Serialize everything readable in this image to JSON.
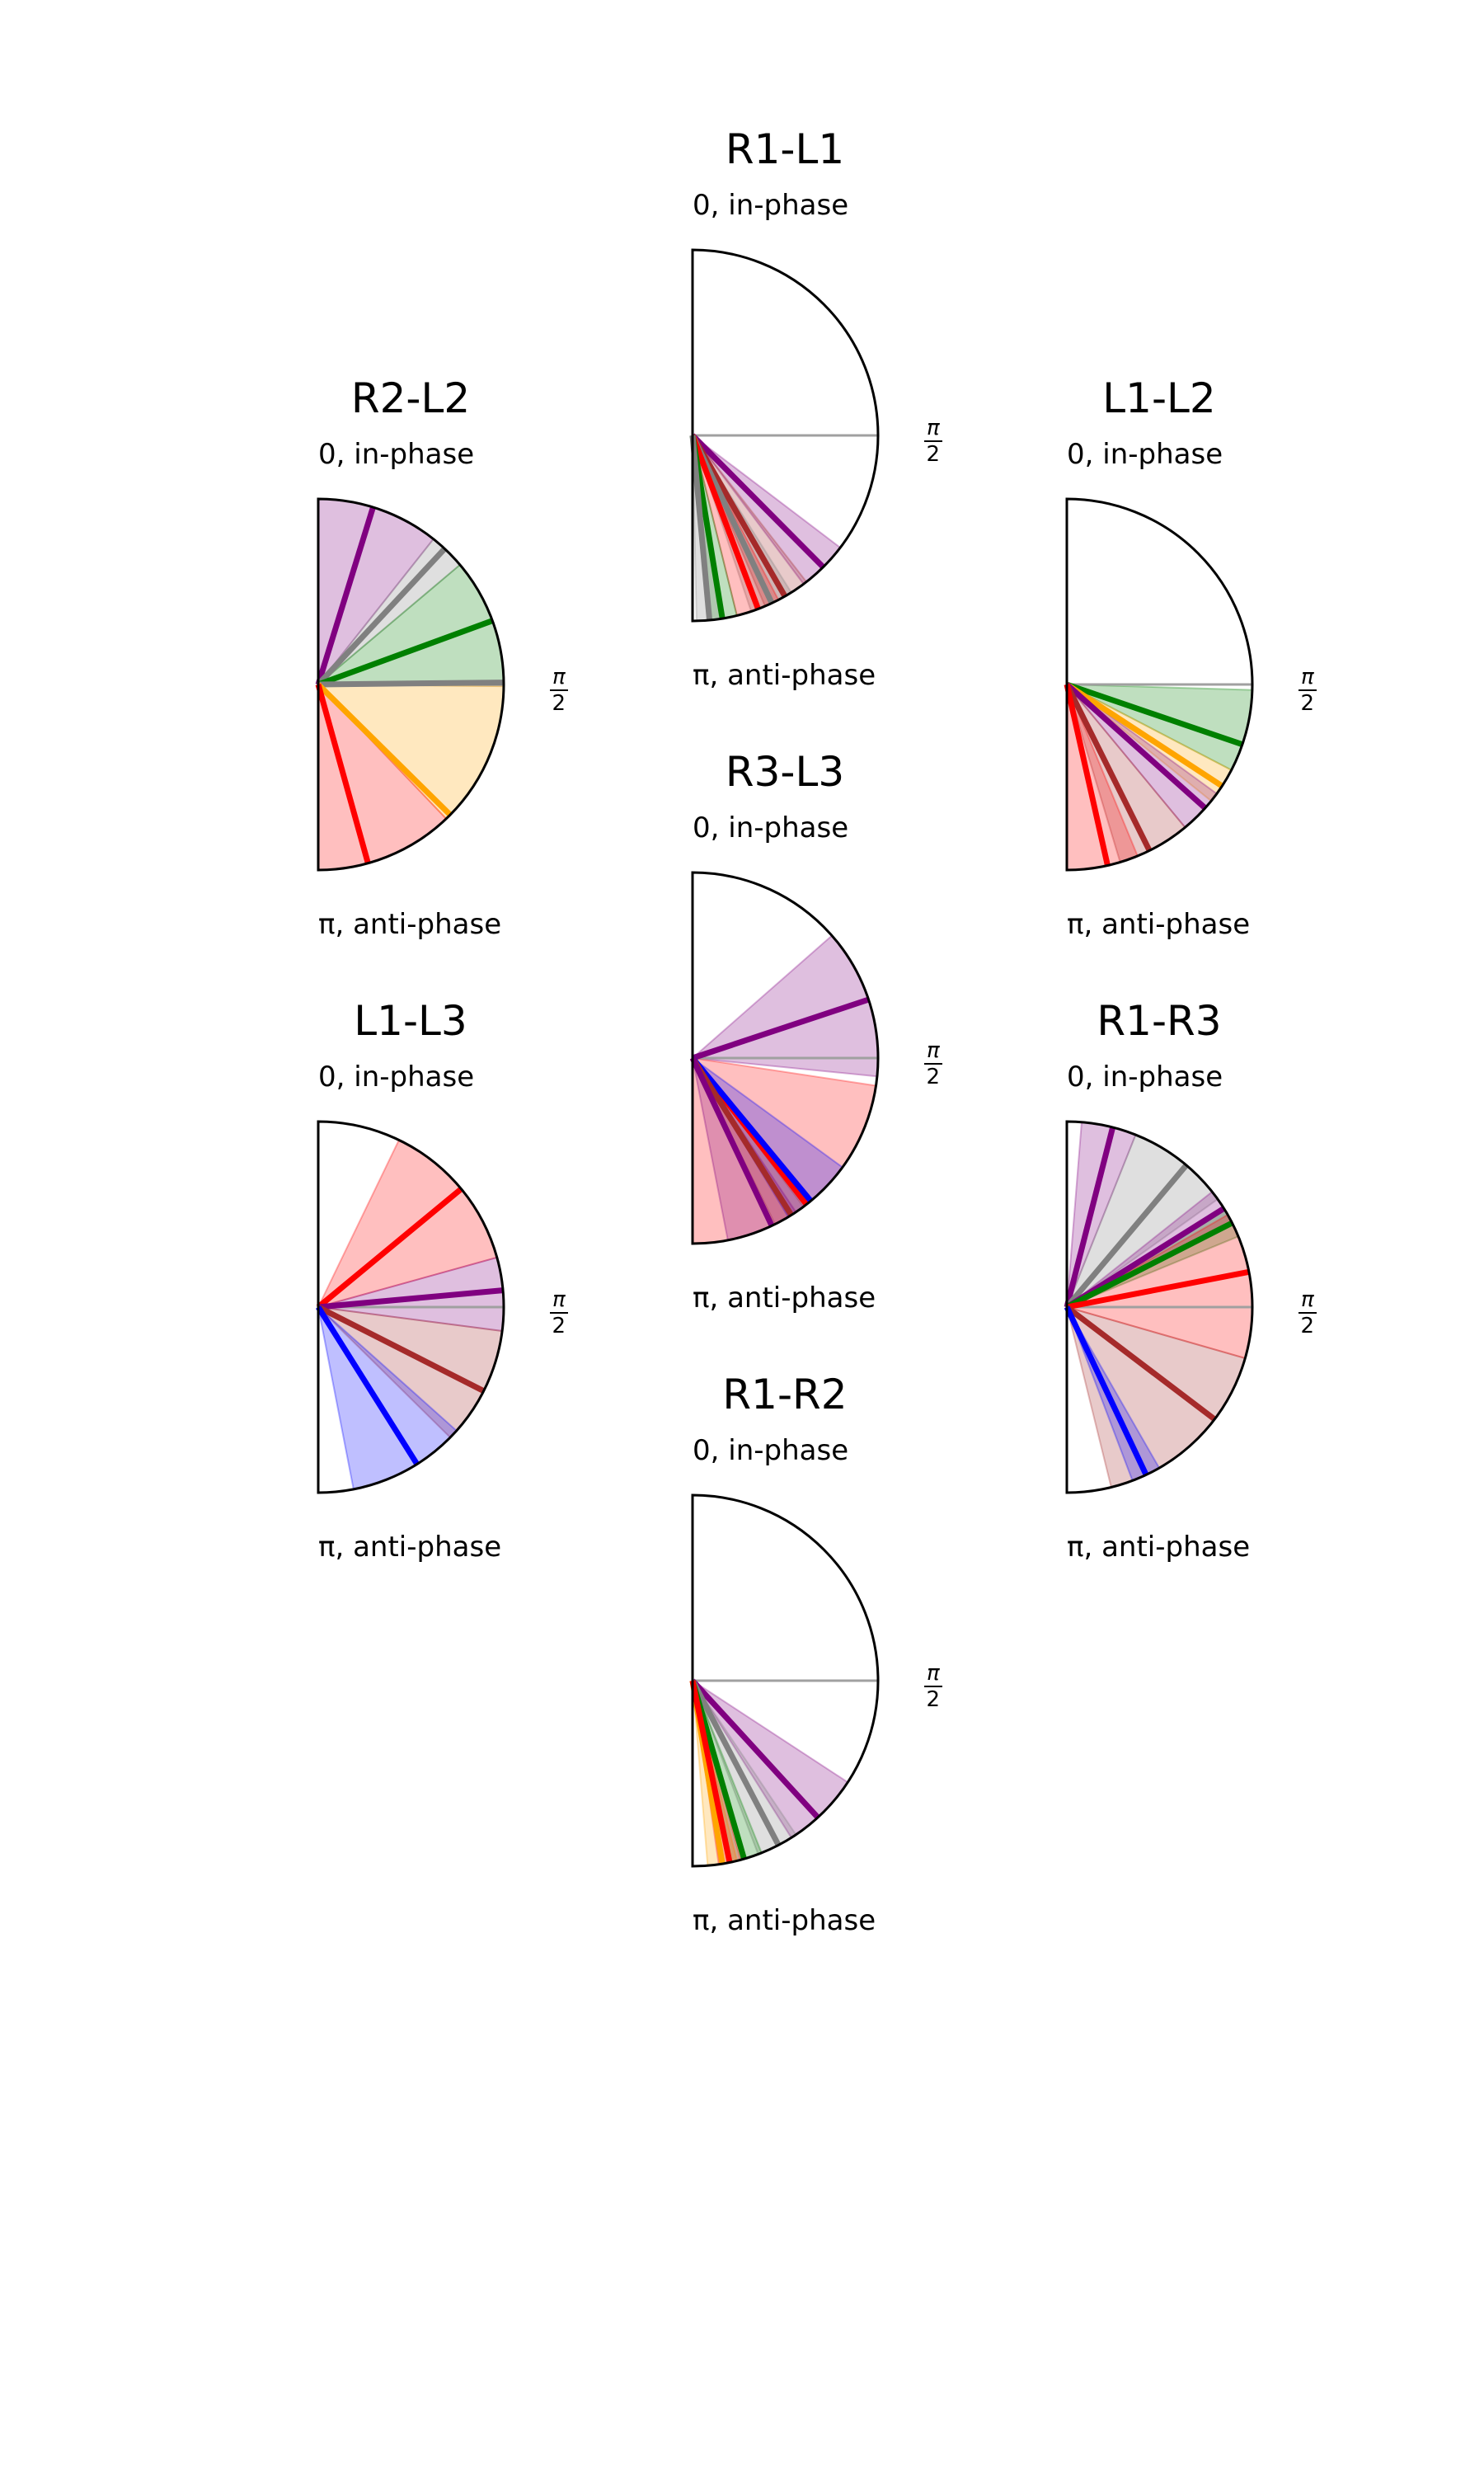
{
  "chart_data": [
    {
      "type": "polar",
      "title": "R1-L1",
      "top_label": "0, in-phase",
      "bottom_label": "π, anti-phase",
      "side_label": "π/2",
      "theta_range": [
        0,
        3.14159
      ],
      "reference_angle": 1.5708,
      "series": [
        {
          "color": "#800080",
          "mean": 2.36,
          "lo": 2.22,
          "hi": 2.5
        },
        {
          "color": "#A52A2A",
          "mean": 2.62,
          "lo": 2.48,
          "hi": 2.74
        },
        {
          "color": "#808080",
          "mean": 2.7,
          "lo": 2.58,
          "hi": 2.82
        },
        {
          "color": "#FF0000",
          "mean": 2.78,
          "lo": 2.66,
          "hi": 2.9
        },
        {
          "color": "#008000",
          "mean": 2.98,
          "lo": 2.9,
          "hi": 3.06
        },
        {
          "color": "#808080",
          "mean": 3.05,
          "lo": 2.98,
          "hi": 3.12
        }
      ]
    },
    {
      "type": "polar",
      "title": "R2-L2",
      "top_label": "0, in-phase",
      "bottom_label": "π, anti-phase",
      "side_label": "π/2",
      "theta_range": [
        0,
        3.14159
      ],
      "reference_angle": 1.5708,
      "series": [
        {
          "color": "#800080",
          "mean": 0.3,
          "lo": 0.0,
          "hi": 0.67
        },
        {
          "color": "#808080",
          "mean": 0.75,
          "lo": 0.67,
          "hi": 0.87
        },
        {
          "color": "#008000",
          "mean": 1.22,
          "lo": 0.87,
          "hi": 1.56
        },
        {
          "color": "#808080",
          "mean": 1.56,
          "lo": 1.55,
          "hi": 1.58
        },
        {
          "color": "#FFA500",
          "mean": 2.35,
          "lo": 1.58,
          "hi": 2.38
        },
        {
          "color": "#FF0000",
          "mean": 2.87,
          "lo": 2.38,
          "hi": 3.14159
        }
      ]
    },
    {
      "type": "polar",
      "title": "L1-L2",
      "top_label": "0, in-phase",
      "bottom_label": "π, anti-phase",
      "side_label": "π/2",
      "theta_range": [
        0,
        3.14159
      ],
      "reference_angle": 1.5708,
      "series": [
        {
          "color": "#008000",
          "mean": 1.9,
          "lo": 1.6,
          "hi": 2.05
        },
        {
          "color": "#FFA500",
          "mean": 2.15,
          "lo": 2.05,
          "hi": 2.25
        },
        {
          "color": "#800080",
          "mean": 2.3,
          "lo": 2.2,
          "hi": 2.45
        },
        {
          "color": "#A52A2A",
          "mean": 2.68,
          "lo": 2.45,
          "hi": 2.85
        },
        {
          "color": "#FF0000",
          "mean": 2.92,
          "lo": 2.75,
          "hi": 3.14159
        }
      ]
    },
    {
      "type": "polar",
      "title": "R3-L3",
      "top_label": "0, in-phase",
      "bottom_label": "π, anti-phase",
      "side_label": "π/2",
      "theta_range": [
        0,
        3.14159
      ],
      "reference_angle": 1.5708,
      "series": [
        {
          "color": "#800080",
          "mean": 1.25,
          "lo": 0.85,
          "hi": 1.67
        },
        {
          "color": "#FF0000",
          "mean": 2.48,
          "lo": 1.72,
          "hi": 3.14159
        },
        {
          "color": "#0000FF",
          "mean": 2.45,
          "lo": 2.2,
          "hi": 2.6
        },
        {
          "color": "#A52A2A",
          "mean": 2.58,
          "lo": 2.5,
          "hi": 2.68
        },
        {
          "color": "#800080",
          "mean": 2.7,
          "lo": 2.55,
          "hi": 2.95
        }
      ]
    },
    {
      "type": "polar",
      "title": "L1-L3",
      "top_label": "0, in-phase",
      "bottom_label": "π, anti-phase",
      "side_label": "π/2",
      "theta_range": [
        0,
        3.14159
      ],
      "reference_angle": 1.5708,
      "series": [
        {
          "color": "#FF0000",
          "mean": 0.88,
          "lo": 0.45,
          "hi": 1.3
        },
        {
          "color": "#800080",
          "mean": 1.48,
          "lo": 1.3,
          "hi": 1.7
        },
        {
          "color": "#A52A2A",
          "mean": 2.04,
          "lo": 1.7,
          "hi": 2.35
        },
        {
          "color": "#0000FF",
          "mean": 2.58,
          "lo": 2.3,
          "hi": 2.95
        }
      ]
    },
    {
      "type": "polar",
      "title": "R1-R3",
      "top_label": "0, in-phase",
      "bottom_label": "π, anti-phase",
      "side_label": "π/2",
      "theta_range": [
        0,
        3.14159
      ],
      "reference_angle": 1.5708,
      "series": [
        {
          "color": "#800080",
          "mean": 0.25,
          "lo": 0.08,
          "hi": 0.38
        },
        {
          "color": "#808080",
          "mean": 0.7,
          "lo": 0.38,
          "hi": 0.95
        },
        {
          "color": "#800080",
          "mean": 1.01,
          "lo": 0.9,
          "hi": 1.1
        },
        {
          "color": "#008000",
          "mean": 1.1,
          "lo": 1.02,
          "hi": 1.18
        },
        {
          "color": "#FF0000",
          "mean": 1.38,
          "lo": 1.05,
          "hi": 1.85
        },
        {
          "color": "#A52A2A",
          "mean": 2.22,
          "lo": 1.85,
          "hi": 2.9
        },
        {
          "color": "#0000FF",
          "mean": 2.7,
          "lo": 2.62,
          "hi": 2.78
        }
      ]
    },
    {
      "type": "polar",
      "title": "R1-R2",
      "top_label": "0, in-phase",
      "bottom_label": "π, anti-phase",
      "side_label": "π/2",
      "theta_range": [
        0,
        3.14159
      ],
      "reference_angle": 1.5708,
      "series": [
        {
          "color": "#800080",
          "mean": 2.4,
          "lo": 2.15,
          "hi": 2.58
        },
        {
          "color": "#808080",
          "mean": 2.66,
          "lo": 2.55,
          "hi": 2.78
        },
        {
          "color": "#008000",
          "mean": 2.86,
          "lo": 2.76,
          "hi": 2.95
        },
        {
          "color": "#FFA500",
          "mean": 2.98,
          "lo": 2.9,
          "hi": 3.06
        },
        {
          "color": "#FF0000",
          "mean": 2.94,
          "lo": 2.88,
          "hi": 3.0
        }
      ]
    }
  ]
}
